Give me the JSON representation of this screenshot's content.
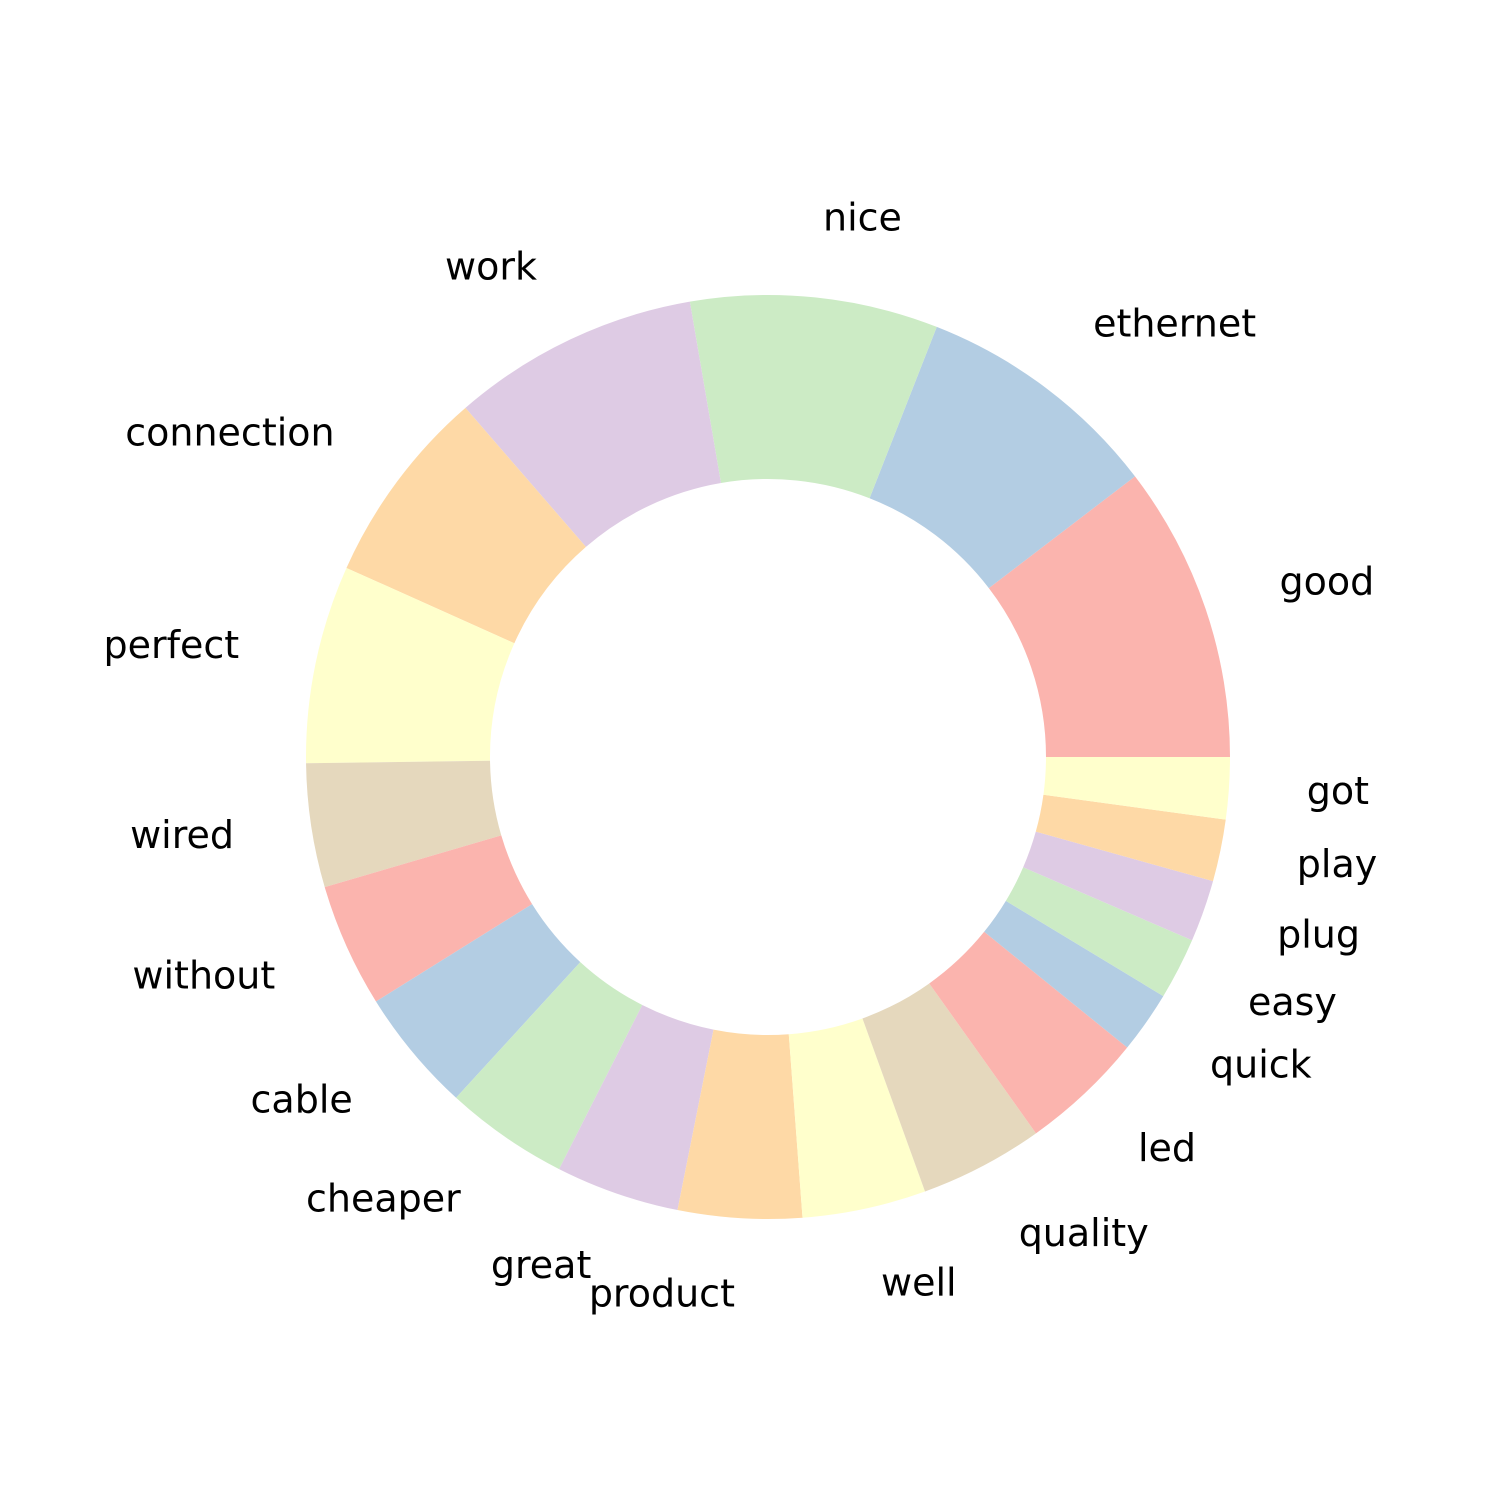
{
  "chart_data": {
    "type": "pie",
    "style": "donut",
    "title": "",
    "palette": [
      "#fbb4ae",
      "#b3cde3",
      "#ccebc5",
      "#decbe4",
      "#fed9a6",
      "#ffffcc",
      "#e5d8bd"
    ],
    "slices": [
      {
        "label": "good",
        "value": 12
      },
      {
        "label": "ethernet",
        "value": 10
      },
      {
        "label": "nice",
        "value": 10
      },
      {
        "label": "work",
        "value": 10
      },
      {
        "label": "connection",
        "value": 8
      },
      {
        "label": "perfect",
        "value": 8
      },
      {
        "label": "wired",
        "value": 5
      },
      {
        "label": "without",
        "value": 5
      },
      {
        "label": "cable",
        "value": 5
      },
      {
        "label": "cheaper",
        "value": 5
      },
      {
        "label": "great",
        "value": 5
      },
      {
        "label": "product",
        "value": 5
      },
      {
        "label": "well",
        "value": 5
      },
      {
        "label": "quality",
        "value": 5
      },
      {
        "label": "led",
        "value": 5
      },
      {
        "label": "quick",
        "value": 2.5
      },
      {
        "label": "easy",
        "value": 2.5
      },
      {
        "label": "plug",
        "value": 2.5
      },
      {
        "label": "play",
        "value": 2.5
      },
      {
        "label": "got",
        "value": 2.5
      }
    ]
  }
}
